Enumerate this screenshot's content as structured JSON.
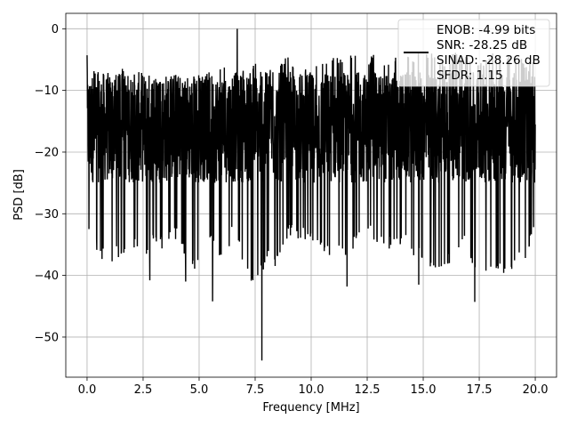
{
  "chart_data": {
    "type": "line",
    "title": "",
    "xlabel": "Frequency [MHz]",
    "ylabel": "PSD [dB]",
    "xlim": [
      -0.95,
      20.95
    ],
    "ylim": [
      -56.5,
      2.5
    ],
    "xticks": [
      0.0,
      2.5,
      5.0,
      7.5,
      10.0,
      12.5,
      15.0,
      17.5,
      20.0
    ],
    "xtick_labels": [
      "0.0",
      "2.5",
      "5.0",
      "7.5",
      "10.0",
      "12.5",
      "15.0",
      "17.5",
      "20.0"
    ],
    "yticks": [
      0,
      -10,
      -20,
      -30,
      -40,
      -50
    ],
    "ytick_labels": [
      "0",
      "−10",
      "−20",
      "−30",
      "−40",
      "−50"
    ],
    "grid": true,
    "legend": {
      "placement": "top-right",
      "entries": [
        "ENOB: -4.99 bits",
        "SNR: -28.25 dB",
        "SINAD: -28.26 dB",
        "SFDR: 1.15"
      ]
    },
    "series": [
      {
        "color": "#000000",
        "x_start": 0.0,
        "x_end": 20.0,
        "upper_envelope_db": [
          -4.5,
          -7,
          -9,
          -6,
          -8,
          -9,
          -8,
          -9,
          -7,
          -8,
          -8,
          -7,
          -6,
          -7,
          -6,
          -5.5,
          -7,
          -5.5,
          -4.5,
          -6,
          -5,
          -4.5,
          -4,
          -5,
          -3.5,
          -4.5,
          -4,
          -5,
          -3.5,
          -4.5,
          -3.5,
          -4,
          -5,
          -3.5,
          -4.5,
          -5,
          -4,
          -4,
          -4.5,
          -5,
          -5
        ],
        "lower_envelope_db": [
          -33,
          -37,
          -39,
          -37,
          -35,
          -39,
          -35,
          -36,
          -34,
          -38,
          -40,
          -35,
          -38,
          -34,
          -38,
          -43,
          -38,
          -39,
          -34,
          -34,
          -35,
          -37,
          -37,
          -38,
          -35,
          -34,
          -35,
          -36,
          -35,
          -37,
          -38,
          -41,
          -39,
          -36,
          -36,
          -42,
          -40,
          -40,
          -39,
          -38,
          -34
        ],
        "notable_points": [
          {
            "x": 0.0,
            "y": -4.3
          },
          {
            "x": 2.8,
            "y": -40.8
          },
          {
            "x": 4.4,
            "y": -41.0
          },
          {
            "x": 5.6,
            "y": -44.2
          },
          {
            "x": 6.7,
            "y": 0.0
          },
          {
            "x": 7.8,
            "y": -53.8
          },
          {
            "x": 11.6,
            "y": -41.8
          },
          {
            "x": 14.8,
            "y": -41.5
          },
          {
            "x": 17.3,
            "y": -44.3
          }
        ],
        "typical_band_db": [
          -25,
          -7
        ]
      }
    ]
  }
}
